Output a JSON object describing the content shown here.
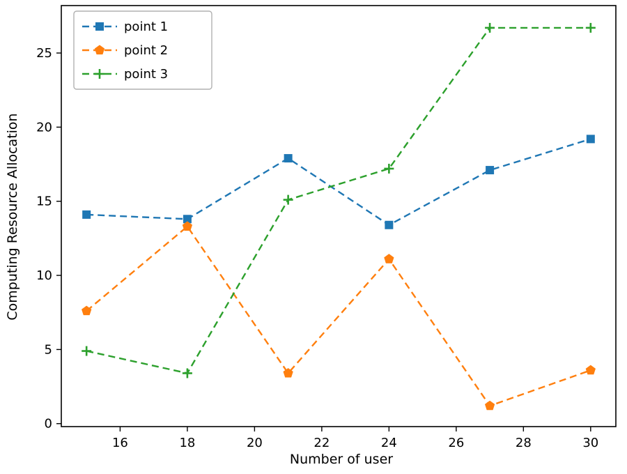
{
  "chart_data": {
    "type": "line",
    "title": "",
    "xlabel": "Number of user",
    "ylabel": "Computing Resource Allocation",
    "x": [
      15,
      18,
      21,
      24,
      27,
      30
    ],
    "series": [
      {
        "name": "point 1",
        "color": "#1f77b4",
        "marker": "square",
        "linestyle": "dashed",
        "values": [
          14.1,
          13.8,
          17.9,
          13.4,
          17.1,
          19.2
        ]
      },
      {
        "name": "point 2",
        "color": "#ff7f0e",
        "marker": "pentagon",
        "linestyle": "dashed",
        "values": [
          7.6,
          13.3,
          3.4,
          11.1,
          1.2,
          3.6
        ]
      },
      {
        "name": "point 3",
        "color": "#2ca02c",
        "marker": "plus",
        "linestyle": "dashed",
        "values": [
          4.9,
          3.4,
          15.1,
          17.2,
          26.7,
          26.7
        ]
      }
    ],
    "xlim": [
      14.25,
      30.75
    ],
    "ylim": [
      -0.2,
      28.2
    ],
    "xticks": [
      16,
      18,
      20,
      22,
      24,
      26,
      28,
      30
    ],
    "yticks": [
      0,
      5,
      10,
      15,
      20,
      25
    ],
    "grid": false,
    "legend_position": "upper left",
    "axes_color": "#000000",
    "background_color": "#ffffff",
    "legend_edge_color": "#b0b0b0"
  }
}
